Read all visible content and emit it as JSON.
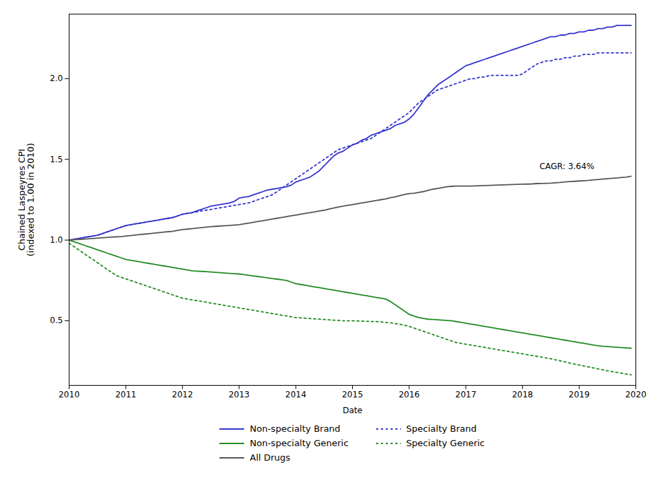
{
  "chart_data": {
    "type": "line",
    "xlabel": "Date",
    "ylabel": "Chained Laspeyres CPI\n(indexed to 1.00 in 2010)",
    "xlim": [
      2010.0,
      2020.0
    ],
    "ylim": [
      0.1,
      2.4
    ],
    "xticks": [
      2010,
      2011,
      2012,
      2013,
      2014,
      2015,
      2016,
      2017,
      2018,
      2019,
      2020
    ],
    "yticks": [
      0.5,
      {
        "value": 1.0,
        "label": "1.0"
      },
      1.5,
      {
        "value": 2.0,
        "label": "2.0"
      }
    ],
    "grid": false,
    "annotations": [
      {
        "text": "CAGR: 3.64%",
        "x": 2018.3,
        "y": 1.44
      }
    ],
    "x": [
      2010.0,
      2010.083,
      2010.167,
      2010.25,
      2010.333,
      2010.417,
      2010.5,
      2010.583,
      2010.667,
      2010.75,
      2010.833,
      2010.917,
      2011.0,
      2011.083,
      2011.167,
      2011.25,
      2011.333,
      2011.417,
      2011.5,
      2011.583,
      2011.667,
      2011.75,
      2011.833,
      2011.917,
      2012.0,
      2012.083,
      2012.167,
      2012.25,
      2012.333,
      2012.417,
      2012.5,
      2012.583,
      2012.667,
      2012.75,
      2012.833,
      2012.917,
      2013.0,
      2013.083,
      2013.167,
      2013.25,
      2013.333,
      2013.417,
      2013.5,
      2013.583,
      2013.667,
      2013.75,
      2013.833,
      2013.917,
      2014.0,
      2014.083,
      2014.167,
      2014.25,
      2014.333,
      2014.417,
      2014.5,
      2014.583,
      2014.667,
      2014.75,
      2014.833,
      2014.917,
      2015.0,
      2015.083,
      2015.167,
      2015.25,
      2015.333,
      2015.417,
      2015.5,
      2015.583,
      2015.667,
      2015.75,
      2015.833,
      2015.917,
      2016.0,
      2016.083,
      2016.167,
      2016.25,
      2016.333,
      2016.417,
      2016.5,
      2016.583,
      2016.667,
      2016.75,
      2016.833,
      2016.917,
      2017.0,
      2017.083,
      2017.167,
      2017.25,
      2017.333,
      2017.417,
      2017.5,
      2017.583,
      2017.667,
      2017.75,
      2017.833,
      2017.917,
      2018.0,
      2018.083,
      2018.167,
      2018.25,
      2018.333,
      2018.417,
      2018.5,
      2018.583,
      2018.667,
      2018.75,
      2018.833,
      2018.917,
      2019.0,
      2019.083,
      2019.167,
      2019.25,
      2019.333,
      2019.417,
      2019.5,
      2019.583,
      2019.667,
      2019.75,
      2019.833,
      2019.917
    ],
    "series": [
      {
        "name": "Non-specialty Brand",
        "color": "#3333cc",
        "line_style": "solid",
        "values": [
          1.0,
          1.005,
          1.01,
          1.015,
          1.02,
          1.025,
          1.03,
          1.04,
          1.05,
          1.06,
          1.07,
          1.08,
          1.09,
          1.095,
          1.1,
          1.105,
          1.11,
          1.115,
          1.12,
          1.125,
          1.13,
          1.135,
          1.14,
          1.15,
          1.16,
          1.165,
          1.17,
          1.18,
          1.19,
          1.2,
          1.21,
          1.215,
          1.22,
          1.225,
          1.23,
          1.24,
          1.26,
          1.265,
          1.27,
          1.28,
          1.29,
          1.3,
          1.31,
          1.315,
          1.32,
          1.325,
          1.33,
          1.34,
          1.36,
          1.37,
          1.38,
          1.39,
          1.41,
          1.43,
          1.46,
          1.49,
          1.52,
          1.54,
          1.55,
          1.57,
          1.59,
          1.6,
          1.62,
          1.63,
          1.65,
          1.66,
          1.67,
          1.68,
          1.69,
          1.71,
          1.72,
          1.73,
          1.75,
          1.78,
          1.82,
          1.86,
          1.9,
          1.93,
          1.96,
          1.98,
          2.0,
          2.02,
          2.04,
          2.06,
          2.08,
          2.09,
          2.1,
          2.11,
          2.12,
          2.13,
          2.14,
          2.15,
          2.16,
          2.17,
          2.18,
          2.19,
          2.2,
          2.21,
          2.22,
          2.23,
          2.24,
          2.25,
          2.26,
          2.26,
          2.27,
          2.27,
          2.28,
          2.28,
          2.29,
          2.29,
          2.3,
          2.3,
          2.31,
          2.31,
          2.32,
          2.32,
          2.33,
          2.33,
          2.33,
          2.33
        ]
      },
      {
        "name": "Specialty Brand",
        "color": "#3333cc",
        "line_style": "dotted",
        "values": [
          1.0,
          1.005,
          1.01,
          1.015,
          1.02,
          1.025,
          1.03,
          1.04,
          1.05,
          1.06,
          1.07,
          1.08,
          1.09,
          1.095,
          1.1,
          1.105,
          1.11,
          1.115,
          1.12,
          1.125,
          1.13,
          1.135,
          1.14,
          1.15,
          1.16,
          1.165,
          1.17,
          1.175,
          1.18,
          1.185,
          1.19,
          1.195,
          1.2,
          1.205,
          1.21,
          1.215,
          1.22,
          1.225,
          1.23,
          1.24,
          1.25,
          1.26,
          1.27,
          1.28,
          1.3,
          1.32,
          1.34,
          1.36,
          1.38,
          1.4,
          1.42,
          1.44,
          1.46,
          1.48,
          1.5,
          1.52,
          1.54,
          1.56,
          1.57,
          1.58,
          1.59,
          1.6,
          1.61,
          1.62,
          1.63,
          1.65,
          1.67,
          1.69,
          1.71,
          1.73,
          1.75,
          1.77,
          1.79,
          1.82,
          1.85,
          1.87,
          1.89,
          1.91,
          1.93,
          1.94,
          1.95,
          1.96,
          1.97,
          1.98,
          1.99,
          2.0,
          2.0,
          2.01,
          2.01,
          2.02,
          2.02,
          2.02,
          2.02,
          2.02,
          2.02,
          2.02,
          2.03,
          2.05,
          2.07,
          2.09,
          2.1,
          2.11,
          2.11,
          2.12,
          2.12,
          2.13,
          2.13,
          2.14,
          2.14,
          2.15,
          2.15,
          2.15,
          2.16,
          2.16,
          2.16,
          2.16,
          2.16,
          2.16,
          2.16,
          2.16
        ]
      },
      {
        "name": "Non-specialty Generic",
        "color": "#228B22",
        "line_style": "solid",
        "values": [
          1.0,
          0.99,
          0.98,
          0.97,
          0.96,
          0.95,
          0.94,
          0.93,
          0.92,
          0.91,
          0.9,
          0.89,
          0.88,
          0.875,
          0.87,
          0.865,
          0.86,
          0.855,
          0.85,
          0.845,
          0.84,
          0.835,
          0.83,
          0.825,
          0.82,
          0.815,
          0.81,
          0.808,
          0.806,
          0.804,
          0.802,
          0.8,
          0.798,
          0.796,
          0.794,
          0.792,
          0.79,
          0.786,
          0.782,
          0.778,
          0.774,
          0.77,
          0.766,
          0.762,
          0.758,
          0.754,
          0.75,
          0.74,
          0.73,
          0.725,
          0.72,
          0.715,
          0.71,
          0.705,
          0.7,
          0.695,
          0.69,
          0.685,
          0.68,
          0.675,
          0.67,
          0.665,
          0.66,
          0.655,
          0.65,
          0.645,
          0.64,
          0.635,
          0.62,
          0.6,
          0.58,
          0.56,
          0.54,
          0.53,
          0.52,
          0.515,
          0.51,
          0.508,
          0.506,
          0.504,
          0.502,
          0.5,
          0.495,
          0.49,
          0.485,
          0.48,
          0.475,
          0.47,
          0.465,
          0.46,
          0.455,
          0.45,
          0.445,
          0.44,
          0.435,
          0.43,
          0.425,
          0.42,
          0.415,
          0.41,
          0.405,
          0.4,
          0.395,
          0.39,
          0.385,
          0.38,
          0.375,
          0.37,
          0.365,
          0.36,
          0.355,
          0.35,
          0.345,
          0.342,
          0.34,
          0.338,
          0.336,
          0.334,
          0.332,
          0.33
        ]
      },
      {
        "name": "Specialty Generic",
        "color": "#228B22",
        "line_style": "dotted",
        "values": [
          0.98,
          0.96,
          0.94,
          0.92,
          0.9,
          0.88,
          0.86,
          0.84,
          0.82,
          0.8,
          0.78,
          0.77,
          0.76,
          0.75,
          0.74,
          0.73,
          0.72,
          0.71,
          0.7,
          0.69,
          0.68,
          0.67,
          0.66,
          0.65,
          0.64,
          0.635,
          0.63,
          0.625,
          0.62,
          0.615,
          0.61,
          0.605,
          0.6,
          0.595,
          0.59,
          0.585,
          0.58,
          0.575,
          0.57,
          0.565,
          0.56,
          0.555,
          0.55,
          0.545,
          0.54,
          0.535,
          0.53,
          0.525,
          0.52,
          0.518,
          0.516,
          0.514,
          0.512,
          0.51,
          0.508,
          0.506,
          0.504,
          0.502,
          0.5,
          0.5,
          0.5,
          0.499,
          0.498,
          0.497,
          0.496,
          0.495,
          0.493,
          0.49,
          0.487,
          0.483,
          0.478,
          0.472,
          0.465,
          0.455,
          0.445,
          0.435,
          0.425,
          0.415,
          0.405,
          0.395,
          0.385,
          0.375,
          0.365,
          0.36,
          0.355,
          0.35,
          0.345,
          0.34,
          0.335,
          0.33,
          0.325,
          0.32,
          0.315,
          0.31,
          0.305,
          0.3,
          0.295,
          0.29,
          0.285,
          0.28,
          0.275,
          0.27,
          0.265,
          0.258,
          0.252,
          0.245,
          0.238,
          0.232,
          0.226,
          0.22,
          0.214,
          0.208,
          0.202,
          0.196,
          0.19,
          0.185,
          0.18,
          0.175,
          0.17,
          0.165
        ]
      },
      {
        "name": "All Drugs",
        "color": "#555555",
        "line_style": "solid",
        "values": [
          1.0,
          1.002,
          1.004,
          1.006,
          1.008,
          1.01,
          1.012,
          1.014,
          1.016,
          1.018,
          1.02,
          1.022,
          1.025,
          1.028,
          1.031,
          1.034,
          1.037,
          1.04,
          1.043,
          1.046,
          1.049,
          1.052,
          1.055,
          1.06,
          1.065,
          1.068,
          1.071,
          1.074,
          1.077,
          1.08,
          1.083,
          1.085,
          1.087,
          1.089,
          1.091,
          1.093,
          1.095,
          1.1,
          1.105,
          1.11,
          1.115,
          1.12,
          1.125,
          1.13,
          1.135,
          1.14,
          1.145,
          1.15,
          1.155,
          1.16,
          1.165,
          1.17,
          1.175,
          1.18,
          1.185,
          1.192,
          1.198,
          1.205,
          1.21,
          1.215,
          1.22,
          1.225,
          1.23,
          1.235,
          1.24,
          1.245,
          1.25,
          1.255,
          1.262,
          1.268,
          1.275,
          1.282,
          1.288,
          1.29,
          1.295,
          1.3,
          1.308,
          1.315,
          1.32,
          1.325,
          1.33,
          1.333,
          1.335,
          1.335,
          1.335,
          1.335,
          1.336,
          1.337,
          1.338,
          1.339,
          1.34,
          1.341,
          1.342,
          1.343,
          1.344,
          1.345,
          1.346,
          1.347,
          1.348,
          1.35,
          1.351,
          1.352,
          1.353,
          1.355,
          1.357,
          1.36,
          1.362,
          1.364,
          1.366,
          1.368,
          1.37,
          1.373,
          1.375,
          1.378,
          1.38,
          1.383,
          1.385,
          1.388,
          1.39,
          1.395
        ]
      }
    ]
  }
}
